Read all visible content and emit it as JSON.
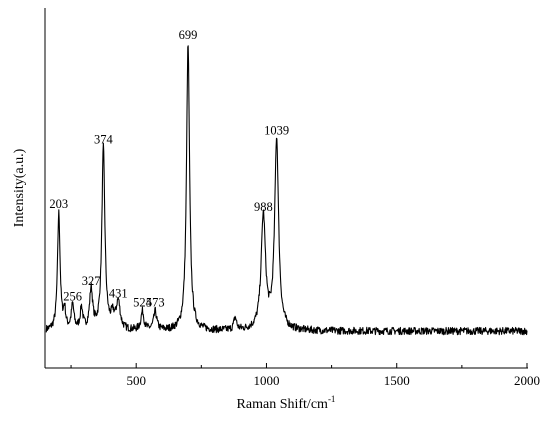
{
  "chart_data": {
    "type": "line",
    "xlabel": "Raman Shift/cm",
    "xlabel_superscript": "-1",
    "ylabel": "Intensity(a.u.)",
    "xlim": [
      150,
      2000
    ],
    "ylim": [
      -0.12,
      1.05
    ],
    "x_ticks": [
      500,
      1000,
      1500,
      2000
    ],
    "y_ticks_labeled": false,
    "grid": false,
    "legend": "none",
    "line_color": "#000000",
    "baseline": 0.0,
    "noise_amplitude": 0.012,
    "peaks": [
      {
        "x": 203,
        "height": 0.38,
        "width": 6,
        "label": "203"
      },
      {
        "x": 225,
        "height": 0.06,
        "width": 5,
        "label": ""
      },
      {
        "x": 256,
        "height": 0.08,
        "width": 6,
        "label": "256"
      },
      {
        "x": 290,
        "height": 0.07,
        "width": 6,
        "label": ""
      },
      {
        "x": 327,
        "height": 0.13,
        "width": 7,
        "label": "327"
      },
      {
        "x": 374,
        "height": 0.59,
        "width": 7,
        "label": "374"
      },
      {
        "x": 410,
        "height": 0.04,
        "width": 8,
        "label": ""
      },
      {
        "x": 431,
        "height": 0.09,
        "width": 9,
        "label": "431"
      },
      {
        "x": 524,
        "height": 0.06,
        "width": 7,
        "label": "524"
      },
      {
        "x": 573,
        "height": 0.06,
        "width": 7,
        "label": "573"
      },
      {
        "x": 699,
        "height": 0.93,
        "width": 7,
        "label": "699"
      },
      {
        "x": 880,
        "height": 0.04,
        "width": 6,
        "label": ""
      },
      {
        "x": 988,
        "height": 0.37,
        "width": 10,
        "label": "988"
      },
      {
        "x": 1039,
        "height": 0.62,
        "width": 9,
        "label": "1039"
      }
    ]
  }
}
